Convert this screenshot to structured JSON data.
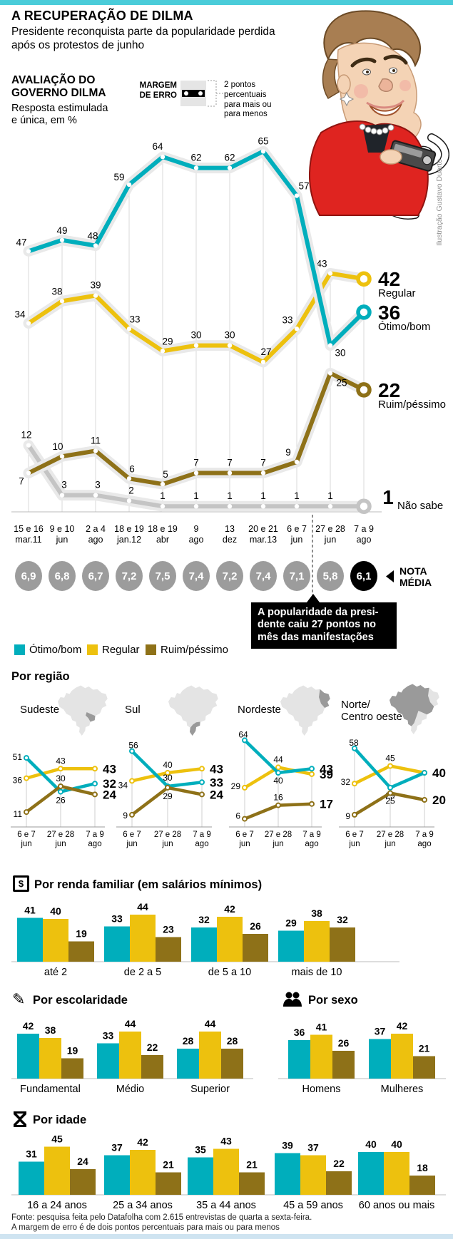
{
  "page": {
    "title": "A RECUPERAÇÃO DE DILMA",
    "subtitle": "Presidente reconquista parte da popularidade perdida após os protestos de junho",
    "credit": "Ilustração Gustavo Duarte",
    "source_line1": "Fonte: pesquisa feita pelo Datafolha com 2.615 entrevistas de quarta a sexta-feira.",
    "source_line2": "A margem de erro é de dois pontos percentuais para mais ou para menos"
  },
  "evaluation_block": {
    "heading_line1": "AVALIAÇÃO DO",
    "heading_line2": "GOVERNO DILMA",
    "sub_line1": "Resposta estimulada",
    "sub_line2": "e única, em %",
    "margin_of_error": {
      "label_line1": "MARGEM",
      "label_line2": "DE ERRO",
      "note_lines": [
        "2 pontos",
        "percentuais",
        "para mais ou",
        "para menos"
      ]
    }
  },
  "colors": {
    "otimo": "#00aebc",
    "regular": "#edc10e",
    "ruim": "#8e7118",
    "nao_sabe": "#c4c4c4",
    "halo": "#e9e9e9",
    "nota_gray": "#9c9c9c",
    "nota_highlight": "#000000",
    "map_light": "#e4e4e4",
    "map_dark": "#9a9a9a",
    "top_strip": "#4accd9",
    "bottom_strip": "#cfe4f1"
  },
  "legend": [
    {
      "label": "Ótimo/bom",
      "color_key": "otimo"
    },
    {
      "label": "Regular",
      "color_key": "regular"
    },
    {
      "label": "Ruim/péssimo",
      "color_key": "ruim"
    }
  ],
  "nota_media": {
    "label_line1": "NOTA",
    "label_line2": "MÉDIA",
    "values": [
      "6,9",
      "6,8",
      "6,7",
      "7,2",
      "7,5",
      "7,4",
      "7,2",
      "7,4",
      "7,1",
      "5,8",
      "6,1"
    ],
    "highlight_index": 10
  },
  "callout": {
    "lines": [
      "A popularidade da presi-",
      "dente caiu 27 pontos no",
      "mês das manifestações"
    ]
  },
  "sections": {
    "region": {
      "heading": "Por região"
    },
    "income": {
      "heading": "Por renda familiar (em salários mínimos)",
      "icon": "money-icon"
    },
    "education": {
      "heading": "Por escolaridade",
      "icon": "pencil-icon"
    },
    "sex": {
      "heading": "Por sexo",
      "icon": "people-icon"
    },
    "age": {
      "heading": "Por idade",
      "icon": "hourglass-icon"
    }
  },
  "chart_data": [
    {
      "id": "main",
      "type": "line",
      "title": "Avaliação do governo Dilma",
      "unit": "%",
      "ylim": [
        0,
        70
      ],
      "categories": [
        [
          "15 e 16",
          "mar.11"
        ],
        [
          "9 e 10",
          "jun"
        ],
        [
          "2 a 4",
          "ago"
        ],
        [
          "18 e 19",
          "jan.12"
        ],
        [
          "18 e 19",
          "abr"
        ],
        [
          "9",
          "ago"
        ],
        [
          "13",
          "dez"
        ],
        [
          "20 e 21",
          "mar.13"
        ],
        [
          "6 e 7",
          "jun"
        ],
        [
          "27 e 28",
          "jun"
        ],
        [
          "7 a 9",
          "ago"
        ]
      ],
      "series": [
        {
          "name": "Ótimo/bom",
          "color_key": "otimo",
          "values": [
            47,
            49,
            48,
            59,
            64,
            62,
            62,
            65,
            57,
            30,
            36
          ]
        },
        {
          "name": "Regular",
          "color_key": "regular",
          "values": [
            34,
            38,
            39,
            33,
            29,
            30,
            30,
            27,
            33,
            43,
            42
          ]
        },
        {
          "name": "Ruim/péssimo",
          "color_key": "ruim",
          "values": [
            7,
            10,
            11,
            6,
            5,
            7,
            7,
            7,
            9,
            25,
            22
          ]
        },
        {
          "name": "Não sabe",
          "color_key": "nao_sabe",
          "values": [
            12,
            3,
            3,
            2,
            1,
            1,
            1,
            1,
            1,
            1,
            1
          ]
        }
      ]
    },
    {
      "id": "sudeste",
      "type": "line",
      "title": "Sudeste",
      "categories": [
        [
          "6 e 7",
          "jun"
        ],
        [
          "27 e 28",
          "jun"
        ],
        [
          "7 a 9",
          "ago"
        ]
      ],
      "series": [
        {
          "name": "Ótimo/bom",
          "color_key": "otimo",
          "values": [
            51,
            26,
            32
          ]
        },
        {
          "name": "Regular",
          "color_key": "regular",
          "values": [
            36,
            43,
            43
          ]
        },
        {
          "name": "Ruim/péssimo",
          "color_key": "ruim",
          "values": [
            11,
            30,
            24
          ]
        }
      ]
    },
    {
      "id": "sul",
      "type": "line",
      "title": "Sul",
      "categories": [
        [
          "6 e 7",
          "jun"
        ],
        [
          "27 e 28",
          "jun"
        ],
        [
          "7 a 9",
          "ago"
        ]
      ],
      "series": [
        {
          "name": "Ótimo/bom",
          "color_key": "otimo",
          "values": [
            56,
            30,
            33
          ]
        },
        {
          "name": "Regular",
          "color_key": "regular",
          "values": [
            34,
            40,
            43
          ]
        },
        {
          "name": "Ruim/péssimo",
          "color_key": "ruim",
          "values": [
            9,
            29,
            24
          ]
        }
      ]
    },
    {
      "id": "nordeste",
      "type": "line",
      "title": "Nordeste",
      "categories": [
        [
          "6 e 7",
          "jun"
        ],
        [
          "27 e 28",
          "jun"
        ],
        [
          "7 a 9",
          "ago"
        ]
      ],
      "series": [
        {
          "name": "Ótimo/bom",
          "color_key": "otimo",
          "values": [
            64,
            40,
            43
          ]
        },
        {
          "name": "Regular",
          "color_key": "regular",
          "values": [
            29,
            44,
            39
          ]
        },
        {
          "name": "Ruim/péssimo",
          "color_key": "ruim",
          "values": [
            6,
            16,
            17
          ]
        }
      ]
    },
    {
      "id": "norte",
      "type": "line",
      "title": "Norte/Centro oeste",
      "title_lines": [
        "Norte/",
        "Centro oeste"
      ],
      "categories": [
        [
          "6 e 7",
          "jun"
        ],
        [
          "27 e 28",
          "jun"
        ],
        [
          "7 a 9",
          "ago"
        ]
      ],
      "series": [
        {
          "name": "Ótimo/bom",
          "color_key": "otimo",
          "values": [
            58,
            29,
            40
          ]
        },
        {
          "name": "Regular",
          "color_key": "regular",
          "values": [
            32,
            45,
            40
          ]
        },
        {
          "name": "Ruim/péssimo",
          "color_key": "ruim",
          "values": [
            9,
            25,
            20
          ]
        }
      ]
    },
    {
      "id": "income",
      "type": "bar",
      "categories": [
        "até 2",
        "de 2 a 5",
        "de 5 a 10",
        "mais de 10"
      ],
      "series": [
        {
          "name": "Ótimo/bom",
          "color_key": "otimo",
          "values": [
            41,
            33,
            32,
            29
          ]
        },
        {
          "name": "Regular",
          "color_key": "regular",
          "values": [
            40,
            44,
            42,
            38
          ]
        },
        {
          "name": "Ruim/péssimo",
          "color_key": "ruim",
          "values": [
            19,
            23,
            26,
            32
          ]
        }
      ]
    },
    {
      "id": "education",
      "type": "bar",
      "categories": [
        "Fundamental",
        "Médio",
        "Superior"
      ],
      "series": [
        {
          "name": "Ótimo/bom",
          "color_key": "otimo",
          "values": [
            42,
            33,
            28
          ]
        },
        {
          "name": "Regular",
          "color_key": "regular",
          "values": [
            38,
            44,
            44
          ]
        },
        {
          "name": "Ruim/péssimo",
          "color_key": "ruim",
          "values": [
            19,
            22,
            28
          ]
        }
      ]
    },
    {
      "id": "sex",
      "type": "bar",
      "categories": [
        "Homens",
        "Mulheres"
      ],
      "series": [
        {
          "name": "Ótimo/bom",
          "color_key": "otimo",
          "values": [
            36,
            37
          ]
        },
        {
          "name": "Regular",
          "color_key": "regular",
          "values": [
            41,
            42
          ]
        },
        {
          "name": "Ruim/péssimo",
          "color_key": "ruim",
          "values": [
            26,
            21
          ]
        }
      ]
    },
    {
      "id": "age",
      "type": "bar",
      "categories": [
        "16 a 24 anos",
        "25 a 34 anos",
        "35 a 44 anos",
        "45 a 59 anos",
        "60 anos ou mais"
      ],
      "series": [
        {
          "name": "Ótimo/bom",
          "color_key": "otimo",
          "values": [
            31,
            37,
            35,
            39,
            40
          ]
        },
        {
          "name": "Regular",
          "color_key": "regular",
          "values": [
            45,
            42,
            43,
            37,
            40
          ]
        },
        {
          "name": "Ruim/péssimo",
          "color_key": "ruim",
          "values": [
            24,
            21,
            21,
            22,
            18
          ]
        }
      ]
    }
  ]
}
